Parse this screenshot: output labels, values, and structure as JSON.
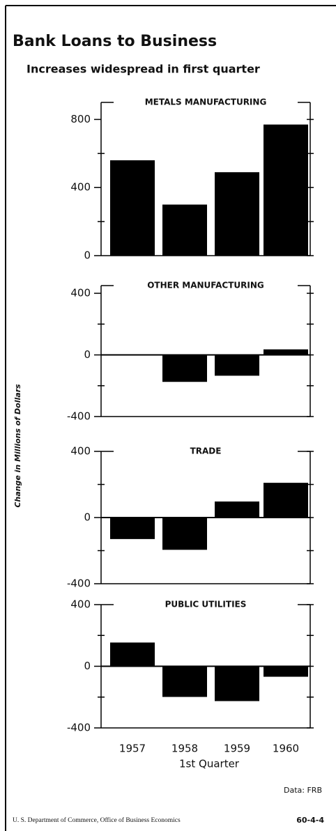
{
  "title": "Bank Loans to Business",
  "subtitle": "Increases widespread in first quarter",
  "ylabel": "Change in Millions of Dollars",
  "xlabel": "1st Quarter",
  "source": "Data: FRB",
  "footer": "U. S. Department of Commerce, Office of Business Economics",
  "chart_id": "60-4-4",
  "chart_data": [
    {
      "type": "bar",
      "title": "METALS MANUFACTURING",
      "values": [
        560,
        300,
        490,
        770
      ],
      "color": "#000000",
      "ylim": [
        0,
        900
      ],
      "yticks": [
        0,
        400,
        800
      ],
      "minor_yticks": [
        200,
        600
      ]
    },
    {
      "type": "bar",
      "title": "OTHER MANUFACTURING",
      "values": [
        null,
        -175,
        -135,
        36
      ],
      "color": "#000000",
      "ylim": [
        -400,
        450
      ],
      "yticks": [
        -400,
        0,
        400
      ],
      "minor_yticks": [
        -200,
        200
      ]
    },
    {
      "type": "bar",
      "title": "TRADE",
      "values": [
        -130,
        -195,
        97,
        210
      ],
      "color": "#000000",
      "ylim": [
        -400,
        400
      ],
      "yticks": [
        -400,
        0,
        400
      ],
      "minor_yticks": [
        -200,
        200
      ]
    },
    {
      "type": "bar",
      "title": "PUBLIC UTILITIES",
      "categories": [
        "1957",
        "1958",
        "1959",
        "1960"
      ],
      "values": [
        154,
        -199,
        -226,
        -68
      ],
      "color": "#000000",
      "ylim": [
        -400,
        400
      ],
      "yticks": [
        -400,
        0,
        400
      ],
      "minor_yticks": [
        -200,
        200
      ]
    }
  ]
}
